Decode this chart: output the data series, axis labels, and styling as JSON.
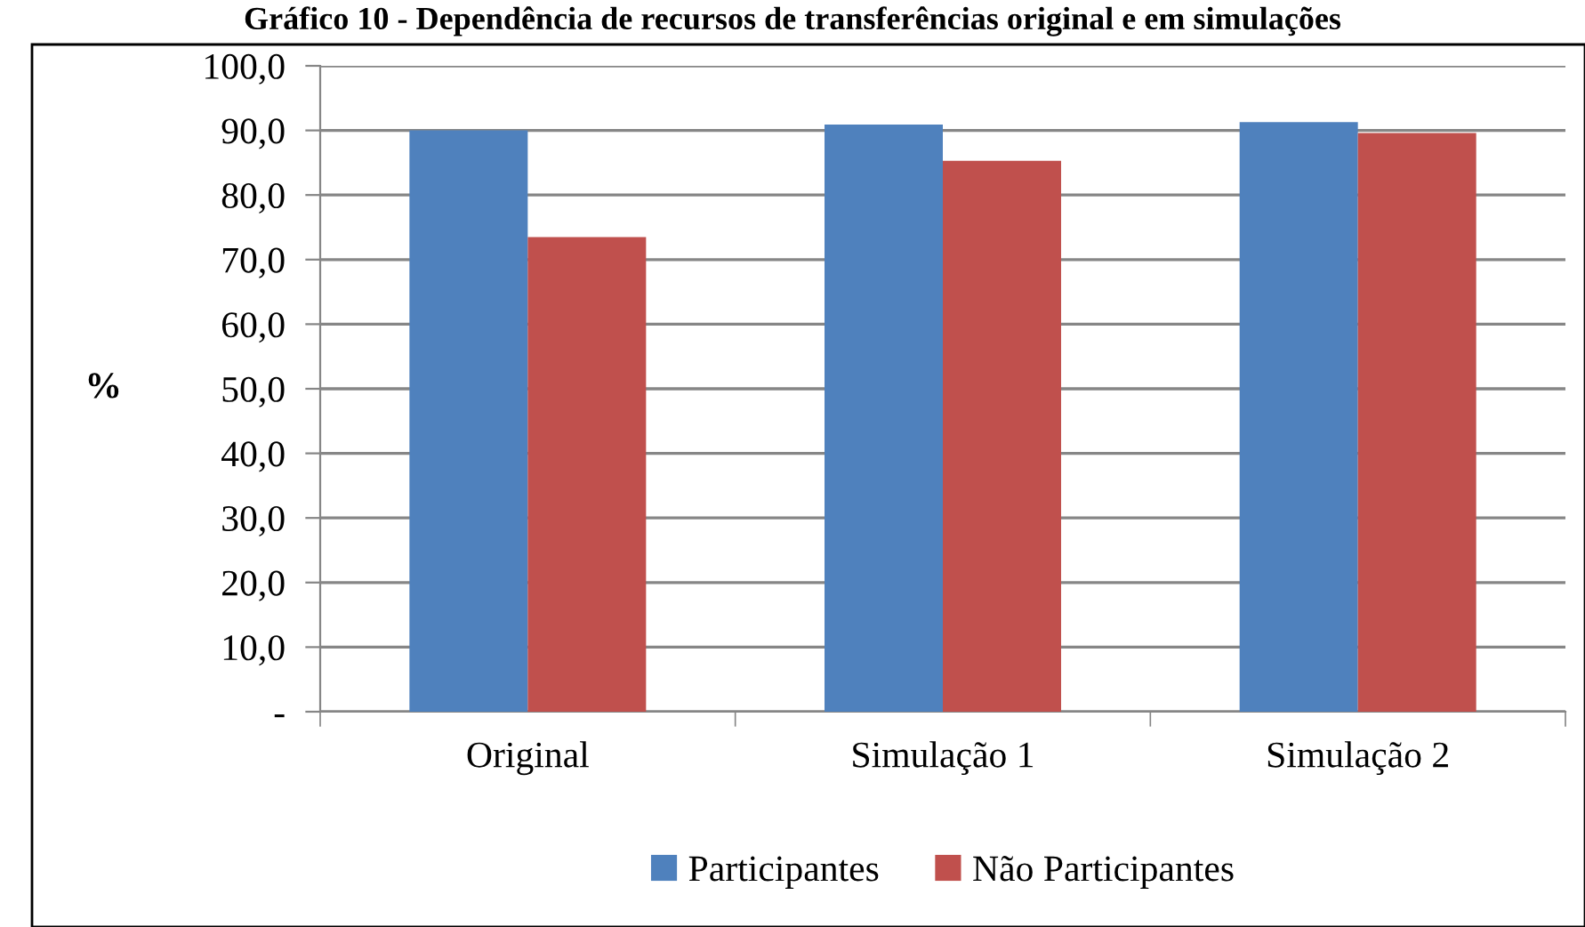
{
  "chart_data": {
    "type": "bar",
    "title": "Gráfico 10 - Dependência de recursos de transferências original e em simulações",
    "ylabel": "%",
    "categories": [
      "Original",
      "Simulação 1",
      "Simulação 2"
    ],
    "series": [
      {
        "name": "Participantes",
        "color": "#4f81bd",
        "values": [
          90.0,
          90.9,
          91.3
        ]
      },
      {
        "name": "Não Participantes",
        "color": "#c0504d",
        "values": [
          73.5,
          85.3,
          89.6
        ]
      }
    ],
    "ylim": [
      0,
      100
    ],
    "yticks": [
      {
        "value": 0,
        "label": "-"
      },
      {
        "value": 10,
        "label": "10,0"
      },
      {
        "value": 20,
        "label": "20,0"
      },
      {
        "value": 30,
        "label": "30,0"
      },
      {
        "value": 40,
        "label": "40,0"
      },
      {
        "value": 50,
        "label": "50,0"
      },
      {
        "value": 60,
        "label": "60,0"
      },
      {
        "value": 70,
        "label": "70,0"
      },
      {
        "value": 80,
        "label": "80,0"
      },
      {
        "value": 90,
        "label": "90,0"
      },
      {
        "value": 100,
        "label": "100,0"
      }
    ],
    "grid": "y",
    "legend": "bottom"
  }
}
